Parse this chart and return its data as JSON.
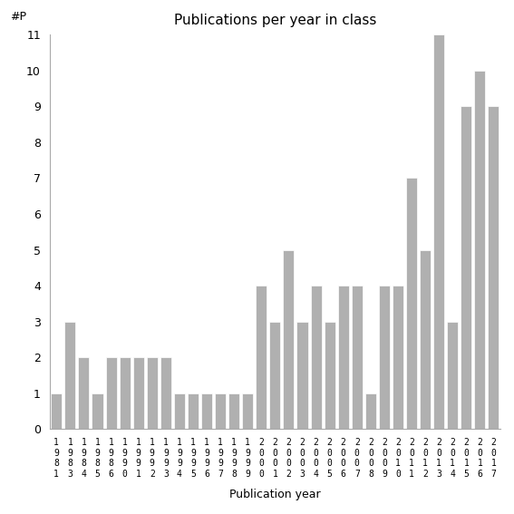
{
  "title": "Publications per year in class",
  "xlabel": "Publication year",
  "ylabel": "#P",
  "years": [
    "1981",
    "1983",
    "1984",
    "1985",
    "1986",
    "1990",
    "1991",
    "1992",
    "1993",
    "1994",
    "1995",
    "1996",
    "1997",
    "1998",
    "1999",
    "2000",
    "2001",
    "2002",
    "2003",
    "2004",
    "2005",
    "2006",
    "2007",
    "2008",
    "2009",
    "2010",
    "2011",
    "2012",
    "2013",
    "2014",
    "2015",
    "2016",
    "2017"
  ],
  "values": [
    1,
    3,
    2,
    1,
    2,
    2,
    2,
    2,
    2,
    1,
    1,
    1,
    1,
    1,
    1,
    4,
    3,
    5,
    3,
    4,
    3,
    4,
    4,
    1,
    4,
    4,
    7,
    5,
    11,
    3,
    9,
    10,
    9
  ],
  "bar_color": "#b0b0b0",
  "bar_edge_color": "#ffffff",
  "background_color": "#ffffff",
  "ylim": [
    0,
    11
  ],
  "yticks": [
    0,
    1,
    2,
    3,
    4,
    5,
    6,
    7,
    8,
    9,
    10,
    11
  ]
}
